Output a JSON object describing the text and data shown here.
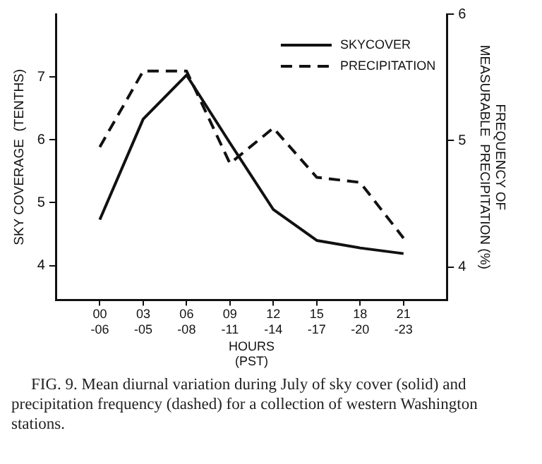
{
  "chart_data": {
    "type": "line",
    "categories": [
      "00\n-06",
      "03\n-05",
      "06\n-08",
      "09\n-11",
      "12\n-14",
      "15\n-17",
      "18\n-20",
      "21\n-23"
    ],
    "series": [
      {
        "name": "SKYCOVER",
        "color": "#111111",
        "values": [
          4.73,
          6.33,
          7.03,
          5.95,
          4.89,
          4.4,
          4.28,
          4.19
        ],
        "line_style": "solid"
      },
      {
        "name": "PRECIPITATION",
        "color": "#111111",
        "values": [
          4.95,
          5.55,
          5.55,
          4.82,
          5.1,
          4.71,
          4.67,
          4.23
        ],
        "line_style": "dashed",
        "axis": "y2"
      }
    ],
    "xlabel": "HOURS\n(PST)",
    "ylabel": "SKY COVERAGE  (TENTHS)",
    "y2label": "FREQUENCY OF\nMEASURABLE  PRECIPITATION (%)",
    "ylim": [
      3.45,
      8.0
    ],
    "yticks": [
      4,
      5,
      6,
      7
    ],
    "y2lim": [
      3.74,
      6.0
    ],
    "y2ticks": [
      4,
      5,
      6
    ],
    "grid": false,
    "legend": "top right",
    "marker": "none",
    "annotations": [
      "FIG. 9. Mean diurnal variation during July of sky cover (solid) and precipitation frequency (dashed) for a collection of western Washington stations."
    ]
  }
}
